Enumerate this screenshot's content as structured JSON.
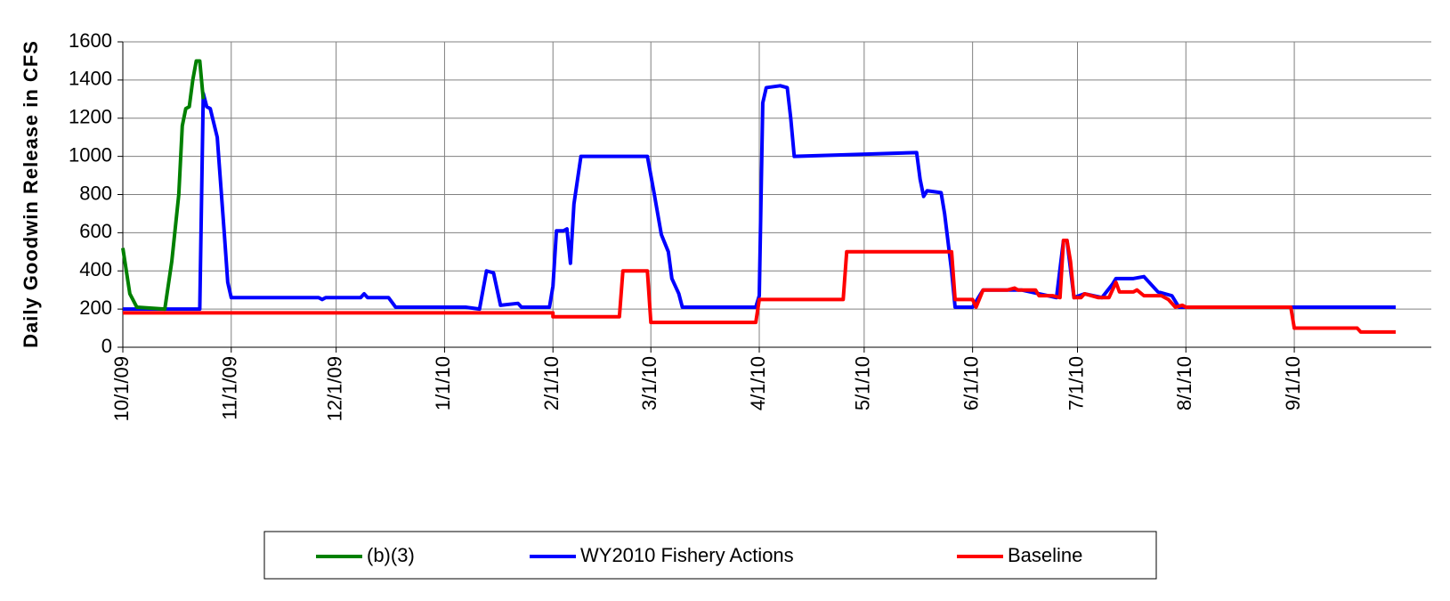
{
  "chart_data": {
    "type": "line",
    "ylabel": "Daily Goodwin Release in CFS",
    "xlim": [
      "2009-10-01",
      "2010-09-30"
    ],
    "xticks": [
      {
        "value": "2009-10-01",
        "label": "10/1/09"
      },
      {
        "value": "2009-11-01",
        "label": "11/1/09"
      },
      {
        "value": "2009-12-01",
        "label": "12/1/09"
      },
      {
        "value": "2010-01-01",
        "label": "1/1/10"
      },
      {
        "value": "2010-02-01",
        "label": "2/1/10"
      },
      {
        "value": "2010-03-01",
        "label": "3/1/10"
      },
      {
        "value": "2010-04-01",
        "label": "4/1/10"
      },
      {
        "value": "2010-05-01",
        "label": "5/1/10"
      },
      {
        "value": "2010-06-01",
        "label": "6/1/10"
      },
      {
        "value": "2010-07-01",
        "label": "7/1/10"
      },
      {
        "value": "2010-08-01",
        "label": "8/1/10"
      },
      {
        "value": "2010-09-01",
        "label": "9/1/10"
      }
    ],
    "ylim": [
      0,
      1600
    ],
    "yticks": [
      0,
      200,
      400,
      600,
      800,
      1000,
      1200,
      1400,
      1600
    ],
    "grid": true,
    "legend": "bottom",
    "series": [
      {
        "name": "(b)(3)",
        "color": "#008000",
        "x": [
          "2009-10-01",
          "2009-10-03",
          "2009-10-05",
          "2009-10-13",
          "2009-10-15",
          "2009-10-17",
          "2009-10-18",
          "2009-10-19",
          "2009-10-20",
          "2009-10-21",
          "2009-10-22",
          "2009-10-23",
          "2009-10-24"
        ],
        "values": [
          520,
          280,
          210,
          200,
          450,
          800,
          1160,
          1250,
          1260,
          1400,
          1500,
          1500,
          1300
        ]
      },
      {
        "name": "WY2010 Fishery Actions",
        "color": "#0000ff",
        "x": [
          "2009-10-01",
          "2009-10-23",
          "2009-10-24",
          "2009-10-25",
          "2009-10-26",
          "2009-10-28",
          "2009-10-30",
          "2009-10-31",
          "2009-11-01",
          "2009-11-26",
          "2009-11-27",
          "2009-11-28",
          "2009-12-08",
          "2009-12-09",
          "2009-12-10",
          "2009-12-16",
          "2009-12-18",
          "2010-01-07",
          "2010-01-11",
          "2010-01-13",
          "2010-01-15",
          "2010-01-17",
          "2010-01-22",
          "2010-01-23",
          "2010-01-31",
          "2010-02-01",
          "2010-02-02",
          "2010-02-04",
          "2010-02-05",
          "2010-02-06",
          "2010-02-07",
          "2010-02-09",
          "2010-02-28",
          "2010-03-02",
          "2010-03-04",
          "2010-03-06",
          "2010-03-07",
          "2010-03-09",
          "2010-03-10",
          "2010-03-31",
          "2010-04-01",
          "2010-04-02",
          "2010-04-03",
          "2010-04-07",
          "2010-04-09",
          "2010-04-10",
          "2010-04-11",
          "2010-05-16",
          "2010-05-17",
          "2010-05-18",
          "2010-05-19",
          "2010-05-23",
          "2010-05-24",
          "2010-05-26",
          "2010-05-27",
          "2010-06-01",
          "2010-06-04",
          "2010-06-15",
          "2010-06-25",
          "2010-06-27",
          "2010-06-28",
          "2010-06-30",
          "2010-07-03",
          "2010-07-08",
          "2010-07-11",
          "2010-07-12",
          "2010-07-17",
          "2010-07-20",
          "2010-07-24",
          "2010-07-28",
          "2010-07-30",
          "2010-09-30"
        ],
        "values": [
          200,
          200,
          1330,
          1260,
          1250,
          1100,
          600,
          340,
          260,
          260,
          250,
          260,
          260,
          280,
          260,
          260,
          210,
          210,
          200,
          400,
          390,
          220,
          230,
          210,
          210,
          320,
          610,
          610,
          620,
          440,
          750,
          1000,
          1000,
          800,
          590,
          500,
          360,
          280,
          210,
          210,
          270,
          1280,
          1360,
          1370,
          1360,
          1200,
          1000,
          1020,
          880,
          790,
          820,
          810,
          700,
          400,
          210,
          210,
          300,
          300,
          260,
          560,
          560,
          260,
          280,
          260,
          330,
          360,
          360,
          370,
          290,
          270,
          210,
          210
        ]
      },
      {
        "name": "Baseline",
        "color": "#ff0000",
        "x": [
          "2009-10-01",
          "2010-02-01",
          "2010-02-01",
          "2010-02-20",
          "2010-02-21",
          "2010-02-28",
          "2010-03-01",
          "2010-03-31",
          "2010-04-01",
          "2010-04-25",
          "2010-04-26",
          "2010-05-26",
          "2010-05-27",
          "2010-06-01",
          "2010-06-02",
          "2010-06-04",
          "2010-06-11",
          "2010-06-13",
          "2010-06-14",
          "2010-06-19",
          "2010-06-20",
          "2010-06-24",
          "2010-06-26",
          "2010-06-27",
          "2010-06-28",
          "2010-06-29",
          "2010-06-30",
          "2010-07-02",
          "2010-07-03",
          "2010-07-07",
          "2010-07-10",
          "2010-07-12",
          "2010-07-13",
          "2010-07-17",
          "2010-07-18",
          "2010-07-20",
          "2010-07-25",
          "2010-07-27",
          "2010-07-29",
          "2010-07-31",
          "2010-08-01",
          "2010-08-31",
          "2010-09-01",
          "2010-09-19",
          "2010-09-20",
          "2010-09-30"
        ],
        "values": [
          180,
          180,
          160,
          160,
          400,
          400,
          130,
          130,
          250,
          250,
          500,
          500,
          250,
          250,
          210,
          300,
          300,
          310,
          300,
          300,
          270,
          270,
          260,
          560,
          560,
          450,
          260,
          260,
          280,
          260,
          260,
          340,
          290,
          290,
          300,
          270,
          270,
          250,
          210,
          220,
          210,
          210,
          100,
          100,
          80,
          80
        ]
      }
    ]
  }
}
